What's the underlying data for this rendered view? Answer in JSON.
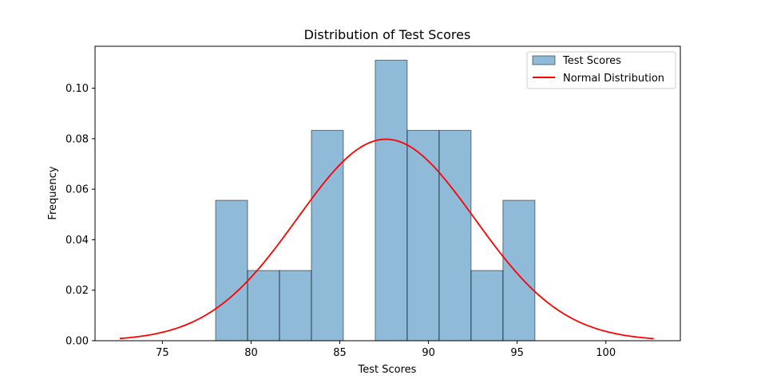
{
  "chart_data": {
    "type": "bar",
    "title": "Distribution of Test Scores",
    "xlabel": "Test Scores",
    "ylabel": "Frequency",
    "xlim": [
      71.2,
      104.2
    ],
    "ylim": [
      0,
      0.1166
    ],
    "x_ticks": [
      75,
      80,
      85,
      90,
      95,
      100
    ],
    "x_tick_labels": [
      "75",
      "80",
      "85",
      "90",
      "95",
      "100"
    ],
    "y_ticks": [
      0.0,
      0.02,
      0.04,
      0.06,
      0.08,
      0.1
    ],
    "y_tick_labels": [
      "0.00",
      "0.02",
      "0.04",
      "0.06",
      "0.08",
      "0.10"
    ],
    "legend_position": "top-right",
    "grid": false,
    "series": [
      {
        "name": "Test Scores",
        "type": "histogram",
        "color": "#1f77b4",
        "bins": [
          {
            "x0": 78.0,
            "x1": 79.8,
            "value": 0.0556
          },
          {
            "x0": 79.8,
            "x1": 81.6,
            "value": 0.0278
          },
          {
            "x0": 81.6,
            "x1": 83.4,
            "value": 0.0278
          },
          {
            "x0": 83.4,
            "x1": 85.2,
            "value": 0.0833
          },
          {
            "x0": 85.2,
            "x1": 87.0,
            "value": 0.0
          },
          {
            "x0": 87.0,
            "x1": 88.8,
            "value": 0.1111
          },
          {
            "x0": 88.8,
            "x1": 90.6,
            "value": 0.0833
          },
          {
            "x0": 90.6,
            "x1": 92.4,
            "value": 0.0833
          },
          {
            "x0": 92.4,
            "x1": 94.2,
            "value": 0.0278
          },
          {
            "x0": 94.2,
            "x1": 96.0,
            "value": 0.0556
          }
        ]
      },
      {
        "name": "Normal Distribution",
        "type": "line",
        "color": "#ff0000",
        "mean": 87.6,
        "std": 5.0,
        "x_range": [
          72.6,
          102.7
        ]
      }
    ]
  }
}
